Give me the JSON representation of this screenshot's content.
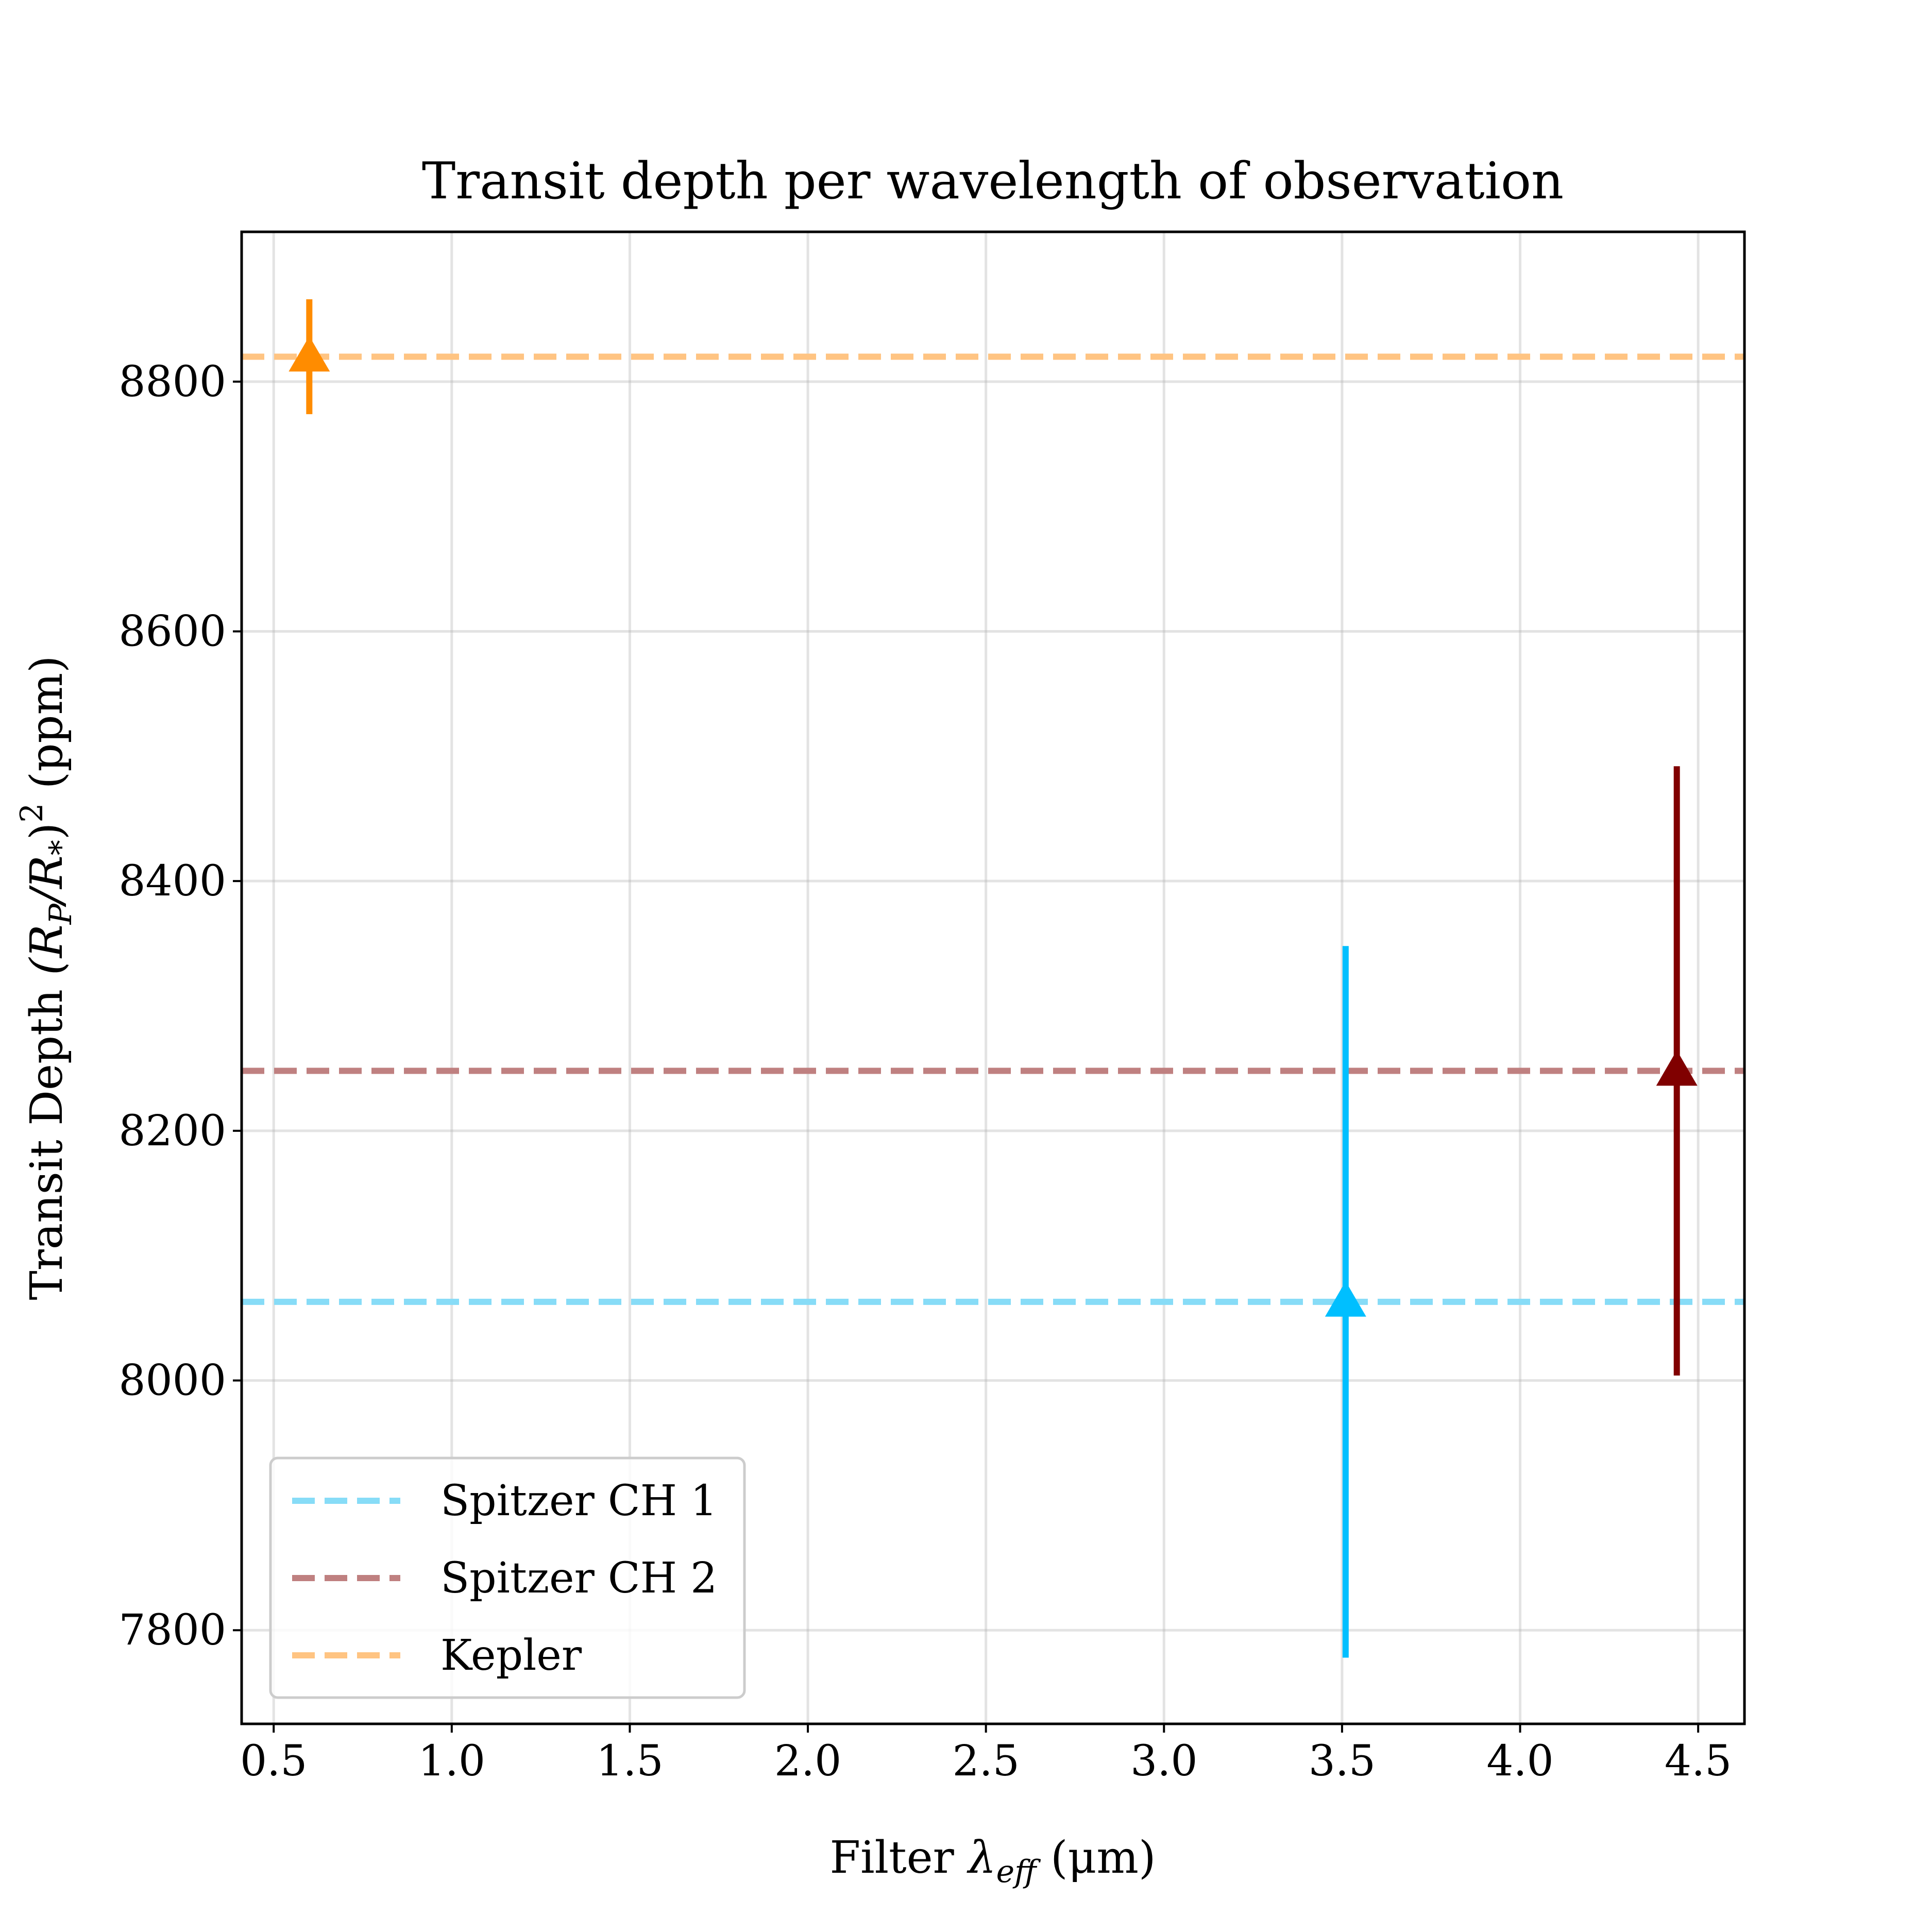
{
  "chart_data": {
    "type": "scatter",
    "title": "Transit depth per wavelength of observation",
    "xlabel_parts": {
      "prefix": "Filter ",
      "symbol": "λ",
      "subscript": "eff",
      "suffix": " (μm)"
    },
    "ylabel_parts": {
      "prefix": "Transit Depth ",
      "formula": "(R",
      "sub1": "P",
      "mid": "/R",
      "sub2": "*",
      "close": ")",
      "sup": "2",
      "suffix": " (ppm)"
    },
    "xlim": [
      0.41,
      4.63
    ],
    "ylim": [
      7725,
      8920
    ],
    "x_ticks": [
      0.5,
      1.0,
      1.5,
      2.0,
      2.5,
      3.0,
      3.5,
      4.0,
      4.5
    ],
    "x_tick_labels": [
      "0.5",
      "1.0",
      "1.5",
      "2.0",
      "2.5",
      "3.0",
      "3.5",
      "4.0",
      "4.5"
    ],
    "y_ticks": [
      7800,
      8000,
      8200,
      8400,
      8600,
      8800
    ],
    "y_tick_labels": [
      "7800",
      "8000",
      "8200",
      "8400",
      "8600",
      "8800"
    ],
    "grid": true,
    "legend_position": "lower-left",
    "points": [
      {
        "name": "Kepler",
        "x": 0.6,
        "y": 8820,
        "yerr": [
          8774,
          8866
        ],
        "color": "#ff8c00",
        "marker": "triangle-up"
      },
      {
        "name": "Spitzer CH 1",
        "x": 3.51,
        "y": 8063,
        "yerr": [
          7778,
          8348
        ],
        "color": "#00bfff",
        "marker": "triangle-up"
      },
      {
        "name": "Spitzer CH 2",
        "x": 4.44,
        "y": 8248,
        "yerr": [
          8004,
          8492
        ],
        "color": "#800000",
        "marker": "triangle-up"
      }
    ],
    "hlines": [
      {
        "label": "Spitzer CH 1",
        "y": 8063,
        "color": "#87dcf7"
      },
      {
        "label": "Spitzer CH 2",
        "y": 8248,
        "color": "#bf8080"
      },
      {
        "label": "Kepler",
        "y": 8820,
        "color": "#ffc482"
      }
    ]
  }
}
